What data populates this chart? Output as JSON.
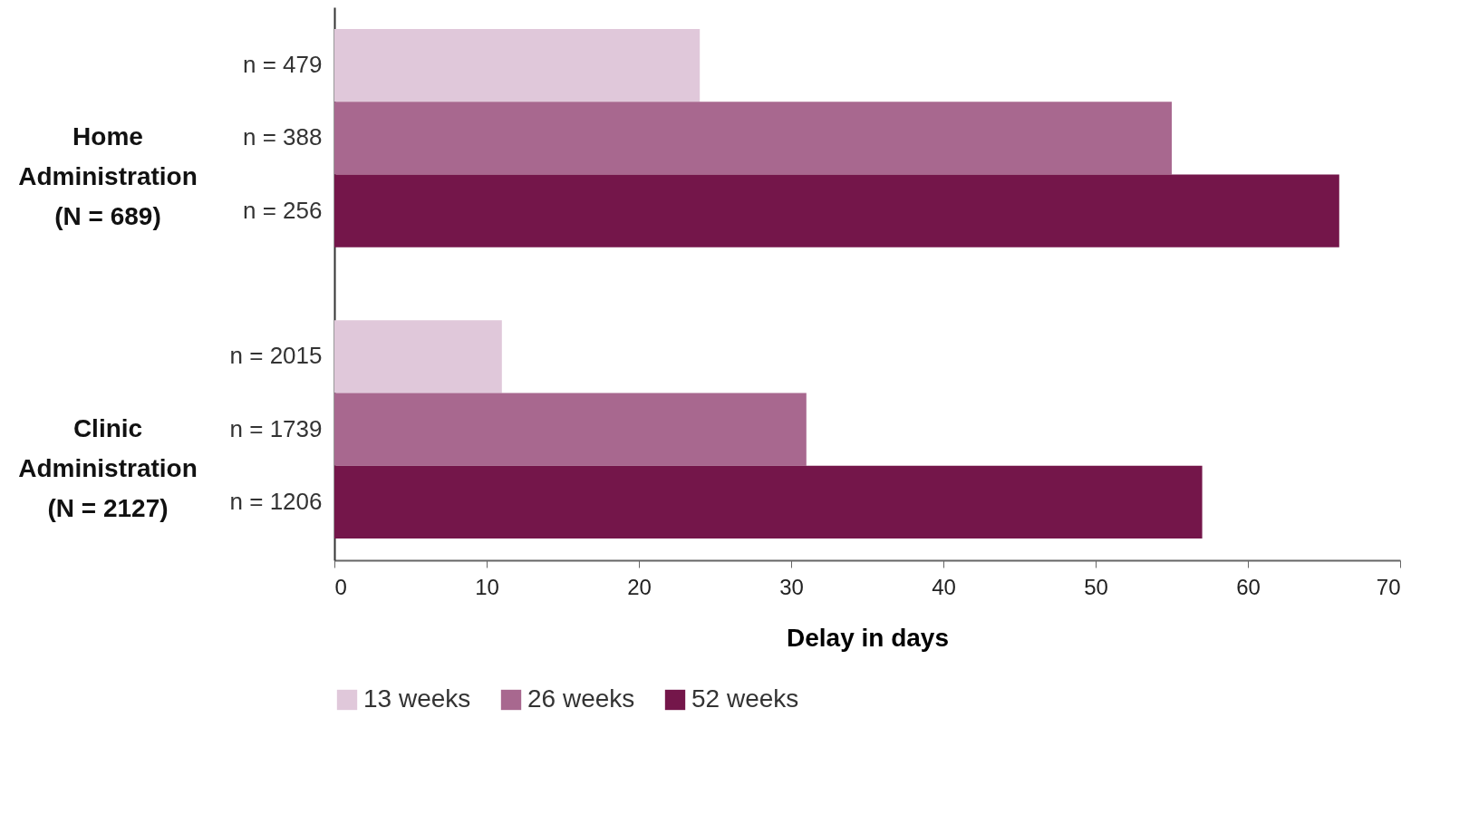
{
  "chart_data": {
    "type": "bar",
    "orientation": "horizontal",
    "xlabel": "Delay in days",
    "categories": [
      "n = 479",
      "n = 388",
      "n = 256",
      null,
      "n = 2015",
      "n = 1739",
      "n = 1206"
    ],
    "series": [
      {
        "name": "13 weeks",
        "color": "#e0c8da",
        "values": [
          24,
          null,
          null,
          null,
          11,
          null,
          null
        ]
      },
      {
        "name": "26 weeks",
        "color": "#a8688f",
        "values": [
          null,
          55,
          null,
          null,
          null,
          31,
          null
        ]
      },
      {
        "name": "52 weeks",
        "color": "#74164a",
        "values": [
          null,
          null,
          66,
          null,
          null,
          null,
          57
        ]
      }
    ],
    "annotations": [
      "Home Administration (N = 689)",
      "Clinic Administration (N = 2127)"
    ],
    "xlim": [
      0,
      70
    ],
    "xticks": [
      0,
      10,
      20,
      30,
      40,
      50,
      60,
      70
    ],
    "grid": false,
    "legend": "bottom"
  }
}
